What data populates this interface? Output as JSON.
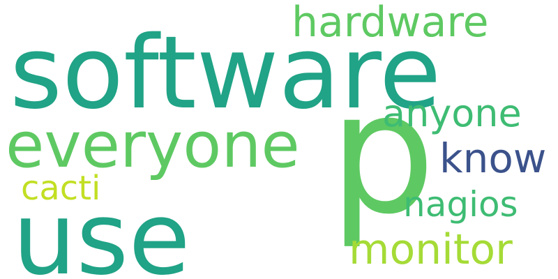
{
  "word_cloud": {
    "words": {
      "software": "software",
      "hardware": "hardware",
      "everyone": "everyone",
      "p": "p",
      "anyone": "anyone",
      "know": "know",
      "cacti": "cacti",
      "nagios": "nagios",
      "use": "use",
      "monitor": "monitor"
    },
    "colors": {
      "teal": "#20a386",
      "green": "#5ec962",
      "mid_green": "#3ebc73",
      "navy": "#3b528b",
      "yellow_green": "#c2df23",
      "lime": "#a5db36"
    }
  }
}
